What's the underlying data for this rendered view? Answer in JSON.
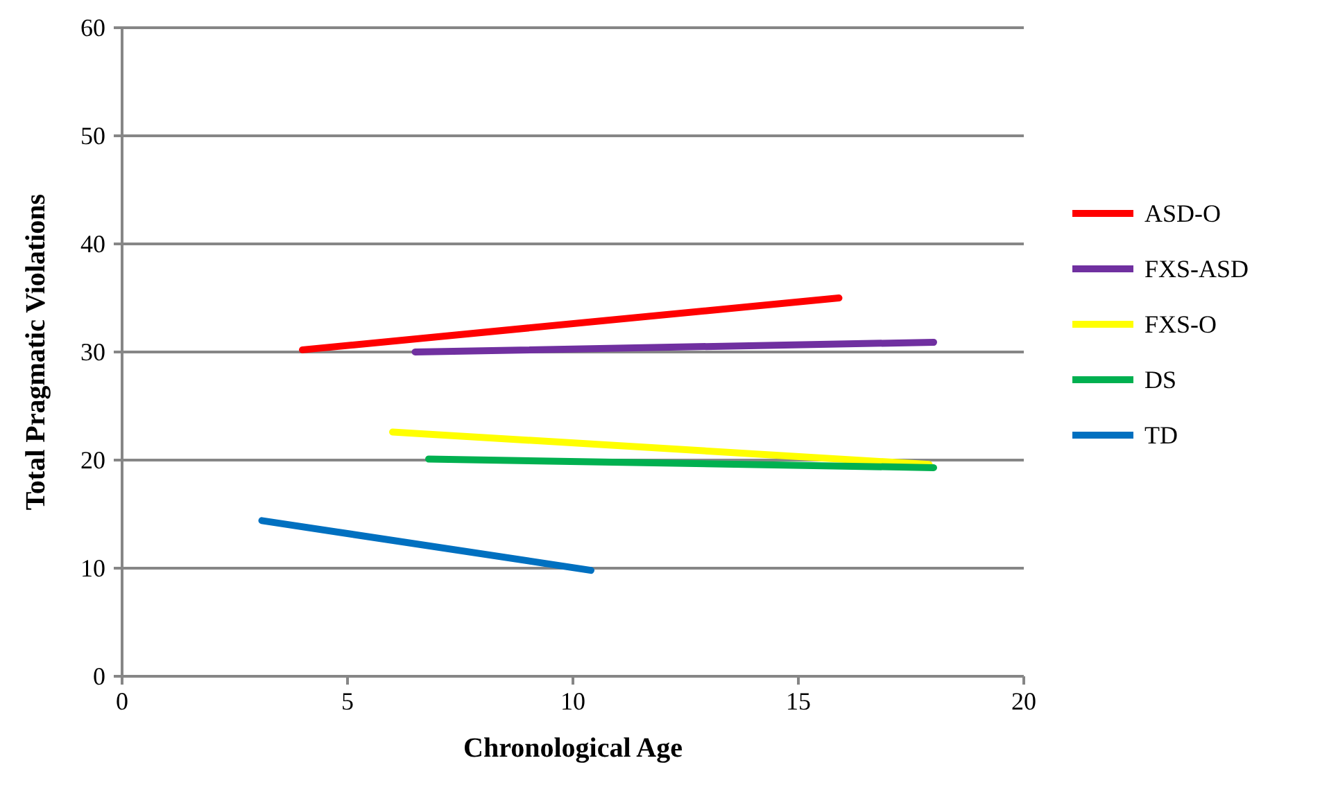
{
  "chart_data": {
    "type": "line",
    "xlabel": "Chronological Age",
    "ylabel": "Total Pragmatic Violations",
    "xlim": [
      0,
      20
    ],
    "xticks": [
      0,
      5,
      10,
      15,
      20
    ],
    "ylim": [
      0,
      60
    ],
    "yticks": [
      0,
      10,
      20,
      30,
      40,
      50,
      60
    ],
    "grid": "y",
    "legend": "right",
    "marker": "none",
    "line_style": "solid",
    "series": [
      {
        "name": "ASD-O",
        "color": "#ff0000",
        "x": [
          4.0,
          15.9
        ],
        "values": [
          30.2,
          35.0
        ]
      },
      {
        "name": "FXS-ASD",
        "color": "#7030a0",
        "x": [
          6.5,
          18.0
        ],
        "values": [
          30.0,
          30.9
        ]
      },
      {
        "name": "FXS-O",
        "color": "#ffff00",
        "x": [
          6.0,
          17.9
        ],
        "values": [
          22.6,
          19.6
        ]
      },
      {
        "name": "DS",
        "color": "#00b050",
        "x": [
          6.8,
          18.0
        ],
        "values": [
          20.1,
          19.3
        ]
      },
      {
        "name": "TD",
        "color": "#0070c0",
        "x": [
          3.1,
          10.4
        ],
        "values": [
          14.4,
          9.8
        ]
      }
    ]
  }
}
